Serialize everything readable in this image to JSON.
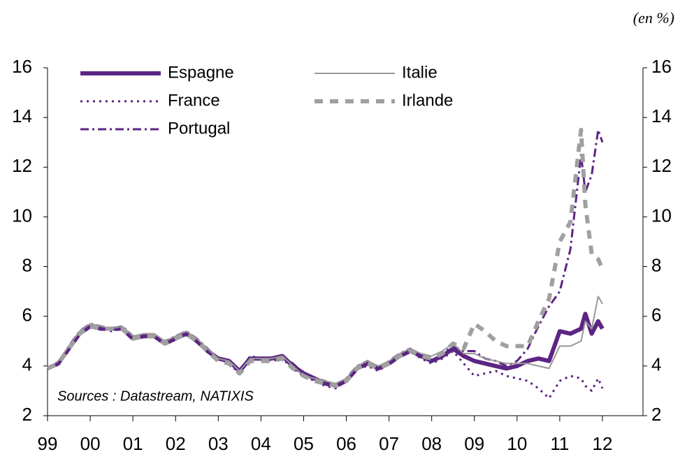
{
  "chart_data": {
    "type": "line",
    "annotations": [
      "(en %)",
      "Sources : Datastream, NATIXIS"
    ],
    "x": [
      1999.0,
      1999.25,
      1999.5,
      1999.75,
      2000.0,
      2000.25,
      2000.5,
      2000.75,
      2001.0,
      2001.25,
      2001.5,
      2001.75,
      2002.0,
      2002.25,
      2002.5,
      2002.75,
      2003.0,
      2003.25,
      2003.5,
      2003.75,
      2004.0,
      2004.25,
      2004.5,
      2004.75,
      2005.0,
      2005.25,
      2005.5,
      2005.75,
      2006.0,
      2006.25,
      2006.5,
      2006.75,
      2007.0,
      2007.25,
      2007.5,
      2007.75,
      2008.0,
      2008.25,
      2008.5,
      2008.75,
      2009.0,
      2009.25,
      2009.5,
      2009.75,
      2010.0,
      2010.25,
      2010.5,
      2010.75,
      2011.0,
      2011.25,
      2011.5,
      2011.6,
      2011.75,
      2011.9,
      2012.0
    ],
    "series": [
      {
        "name": "Espagne",
        "color": "#5c2483",
        "style": "thick",
        "values": [
          3.9,
          4.1,
          4.7,
          5.3,
          5.6,
          5.5,
          5.5,
          5.5,
          5.1,
          5.2,
          5.2,
          4.9,
          5.1,
          5.3,
          5.0,
          4.6,
          4.3,
          4.2,
          3.8,
          4.3,
          4.3,
          4.3,
          4.4,
          4.0,
          3.7,
          3.5,
          3.3,
          3.2,
          3.4,
          3.9,
          4.1,
          3.9,
          4.1,
          4.4,
          4.6,
          4.4,
          4.2,
          4.4,
          4.7,
          4.4,
          4.2,
          4.1,
          4.0,
          3.9,
          4.0,
          4.2,
          4.3,
          4.2,
          5.4,
          5.3,
          5.5,
          6.1,
          5.3,
          5.8,
          5.5
        ]
      },
      {
        "name": "France",
        "color": "#5c2483",
        "style": "dotted",
        "values": [
          3.9,
          4.1,
          4.7,
          5.3,
          5.6,
          5.5,
          5.4,
          5.5,
          5.1,
          5.2,
          5.2,
          4.9,
          5.1,
          5.3,
          5.0,
          4.6,
          4.3,
          4.1,
          3.7,
          4.3,
          4.3,
          4.2,
          4.3,
          3.9,
          3.6,
          3.4,
          3.2,
          3.1,
          3.4,
          3.9,
          4.0,
          3.8,
          4.1,
          4.4,
          4.6,
          4.3,
          4.1,
          4.3,
          4.6,
          4.1,
          3.6,
          3.7,
          3.8,
          3.6,
          3.5,
          3.4,
          3.1,
          2.7,
          3.4,
          3.6,
          3.5,
          3.2,
          3.0,
          3.5,
          3.1
        ]
      },
      {
        "name": "Portugal",
        "color": "#5c2483",
        "style": "dash-dot",
        "values": [
          3.9,
          4.1,
          4.8,
          5.4,
          5.7,
          5.6,
          5.5,
          5.6,
          5.2,
          5.2,
          5.2,
          5.0,
          5.2,
          5.4,
          5.1,
          4.7,
          4.3,
          4.2,
          3.8,
          4.4,
          4.3,
          4.3,
          4.4,
          4.1,
          3.7,
          3.5,
          3.4,
          3.2,
          3.5,
          4.0,
          4.2,
          3.9,
          4.2,
          4.5,
          4.7,
          4.4,
          4.2,
          4.5,
          4.8,
          4.6,
          4.6,
          4.3,
          4.2,
          4.0,
          4.2,
          4.7,
          5.6,
          6.4,
          7.0,
          8.7,
          12.5,
          11.0,
          11.7,
          13.5,
          13.0
        ]
      },
      {
        "name": "Italie",
        "color": "#999999",
        "style": "solid",
        "values": [
          3.9,
          4.2,
          4.8,
          5.4,
          5.7,
          5.6,
          5.5,
          5.6,
          5.2,
          5.3,
          5.3,
          5.0,
          5.2,
          5.4,
          5.1,
          4.7,
          4.3,
          4.2,
          3.8,
          4.3,
          4.3,
          4.3,
          4.4,
          4.0,
          3.6,
          3.5,
          3.4,
          3.3,
          3.5,
          4.0,
          4.2,
          4.0,
          4.2,
          4.5,
          4.7,
          4.5,
          4.4,
          4.6,
          4.9,
          4.5,
          4.5,
          4.3,
          4.2,
          4.1,
          4.1,
          4.1,
          4.0,
          3.9,
          4.8,
          4.8,
          5.0,
          5.8,
          5.5,
          6.8,
          6.5
        ]
      },
      {
        "name": "Irlande",
        "color": "#a0a0a0",
        "style": "thick-dashed",
        "values": [
          3.9,
          4.1,
          4.7,
          5.3,
          5.6,
          5.5,
          5.5,
          5.5,
          5.1,
          5.2,
          5.2,
          4.9,
          5.1,
          5.3,
          5.0,
          4.6,
          4.2,
          4.1,
          3.7,
          4.2,
          4.2,
          4.2,
          4.3,
          3.9,
          3.6,
          3.4,
          3.3,
          3.2,
          3.4,
          3.9,
          4.1,
          3.9,
          4.1,
          4.4,
          4.6,
          4.4,
          4.3,
          4.5,
          4.9,
          4.7,
          5.7,
          5.4,
          5.0,
          4.8,
          4.8,
          4.8,
          5.8,
          6.7,
          9.0,
          9.8,
          13.5,
          10.5,
          8.5,
          8.3,
          7.9
        ]
      }
    ],
    "xlim": [
      1999,
      2012.95
    ],
    "xticks": [
      {
        "value": 1999,
        "label": "99"
      },
      {
        "value": 2000,
        "label": "00"
      },
      {
        "value": 2001,
        "label": "01"
      },
      {
        "value": 2002,
        "label": "02"
      },
      {
        "value": 2003,
        "label": "03"
      },
      {
        "value": 2004,
        "label": "04"
      },
      {
        "value": 2005,
        "label": "05"
      },
      {
        "value": 2006,
        "label": "06"
      },
      {
        "value": 2007,
        "label": "07"
      },
      {
        "value": 2008,
        "label": "08"
      },
      {
        "value": 2009,
        "label": "09"
      },
      {
        "value": 2010,
        "label": "10"
      },
      {
        "value": 2011,
        "label": "11"
      },
      {
        "value": 2012,
        "label": "12"
      }
    ],
    "ylim": [
      2,
      16
    ],
    "yticks": [
      2,
      4,
      6,
      8,
      10,
      12,
      14,
      16
    ],
    "y2lim": [
      2,
      16
    ],
    "y2ticks": [
      2,
      4,
      6,
      8,
      10,
      12,
      14,
      16
    ],
    "grid": false
  }
}
